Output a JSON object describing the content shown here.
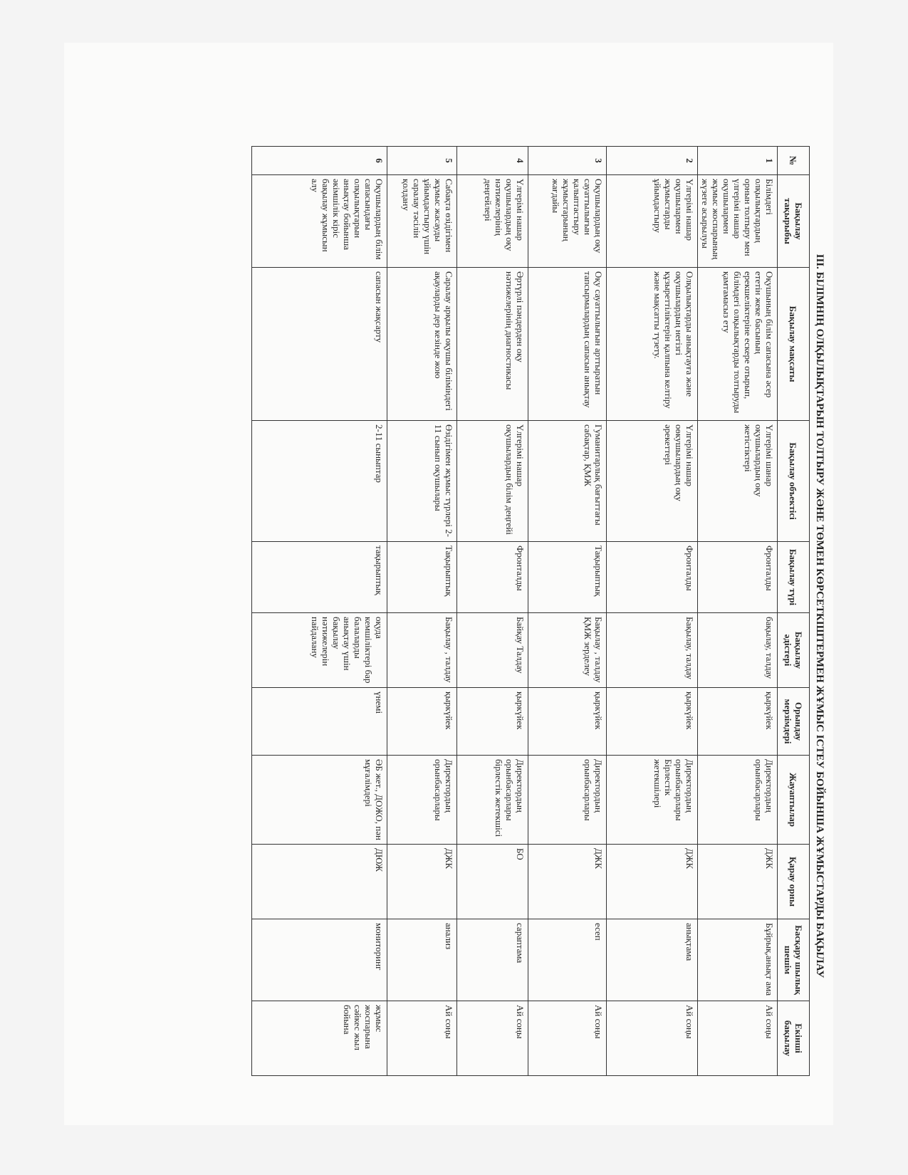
{
  "title": "III. БІЛІМНІҢ ОЛҚЫЛЫҚТАРЫН ТОЛТЫРУ ЖӘНЕ ТӨМЕН КӨРСЕТКІШТЕРМЕН ЖҰМЫС ІСТЕУ БОЙЫНША ЖҰМЫСТАРДЫ БАҚЫЛАУ",
  "headers": [
    "№",
    "Бақылау тақырыбы",
    "Бақылау мақсаты",
    "Бақылау объектісі",
    "Бақылау түрі",
    "Бақылау әдістері",
    "Орындау мерзімдері",
    "Жауаптылар",
    "Қарау орны",
    "Басқару шылық шешім",
    "Екінші бақылау"
  ],
  "rows": [
    [
      "1",
      "Білімдегі олқылықтардың орнын толтыру мен үлгерімі нашар оқушылармен жұмыс жоспарының жүзеге асырылуы",
      "Оқушының білім сапасына әсер ететін жеке басының ерекшеліктеріне ескере отырып, білімдегі олқылықтарды толтыруды қамтамасыз ету",
      "Үлгерімі шанар оқушылардың оқу жетістіктері",
      "Фронталды",
      "бақылау, талдау",
      "қыркүйек",
      "Директордың орынбасарлары",
      "ДЖК",
      "Бұйрық,анықт ама",
      "Ай соңы"
    ],
    [
      "2",
      "Үлгерімі нашар оқушылармен жұмыстарды ұйымдастыру",
      "Олқылықтарды анықтауға және оқушылардың негізгі құзыреттіліктерін қалпына келтіру және мақсатты түзету.",
      "Үлгерімі нашар оөкушылардың оқу әрекеттері",
      "Фронталды",
      "Бақылау, талдау",
      "қыркүйек",
      "Директордың орынбасарлары Бірлестік жетекшілері",
      "ДЖК",
      "анықтама",
      "Ай соңы"
    ],
    [
      "3",
      "Оқушылардың оқу сауаттылығын қалыптастыру жұмыстарының жағдайы",
      "Оқу сауаттылығын арттыратын тапсырмалардың сапасын анықтау",
      "Гуманитарлық бағыттағы сабақтар, ҚМЖ",
      "Тақырыптық",
      "Бақылау , талдау ҚМЖ зерделеу",
      "қыркүйек",
      "Директордың орынбасарлары",
      "ДЖК",
      "есеп",
      "Ай соңы"
    ],
    [
      "4",
      "Үлгерімі нашар оқушылардың оқу нәтижелерінің деңгейлері",
      "Әртүрлі пәндерден оқу нәтижелерінің диагностикасы",
      "Үлгерімі нашар оқушылардың білім деңгейі",
      "Фронталды",
      "Байқау Талдау",
      "қыркүйек",
      "Директордың орынбасарлары бірлестік жетекшісі",
      "БО",
      "сараптама",
      "Ай соңы"
    ],
    [
      "5",
      "Сабақта өзідігімен жұмыс жасауды ұйымдастыру үшін саралау тәсілін қолдану",
      "Саралау арқылы оқушы біліміндегі ақауларды дер кезінде жою",
      "Өзідігімен жұмыс түрлері 2-11 сынып оқушылары",
      "Тақырыптық",
      "Бақылау , талдау",
      "қыркүйек",
      "Директордың орынбасарлары",
      "ДЖК",
      "анализ",
      "Ай соңы"
    ],
    [
      "6",
      "Оқушылардың білім сапасындағы олқылықтарын анықтау бойынша әкімшілік кіріс бақылау жұмысын алу",
      "сапасын жақсарту",
      "2-11 сыныптар",
      "тақырыптық",
      "оқуда кемшіліктері бар балаларды анықтау үшін бақылау нәтижелерін пайдалану",
      "үнемі",
      "ӘБ жет., ДОЖО, пән мұғалімдері",
      "ДЮЖ",
      "мониторинг",
      "жұмыс жоспарына сәйкес жыл бойына"
    ]
  ]
}
